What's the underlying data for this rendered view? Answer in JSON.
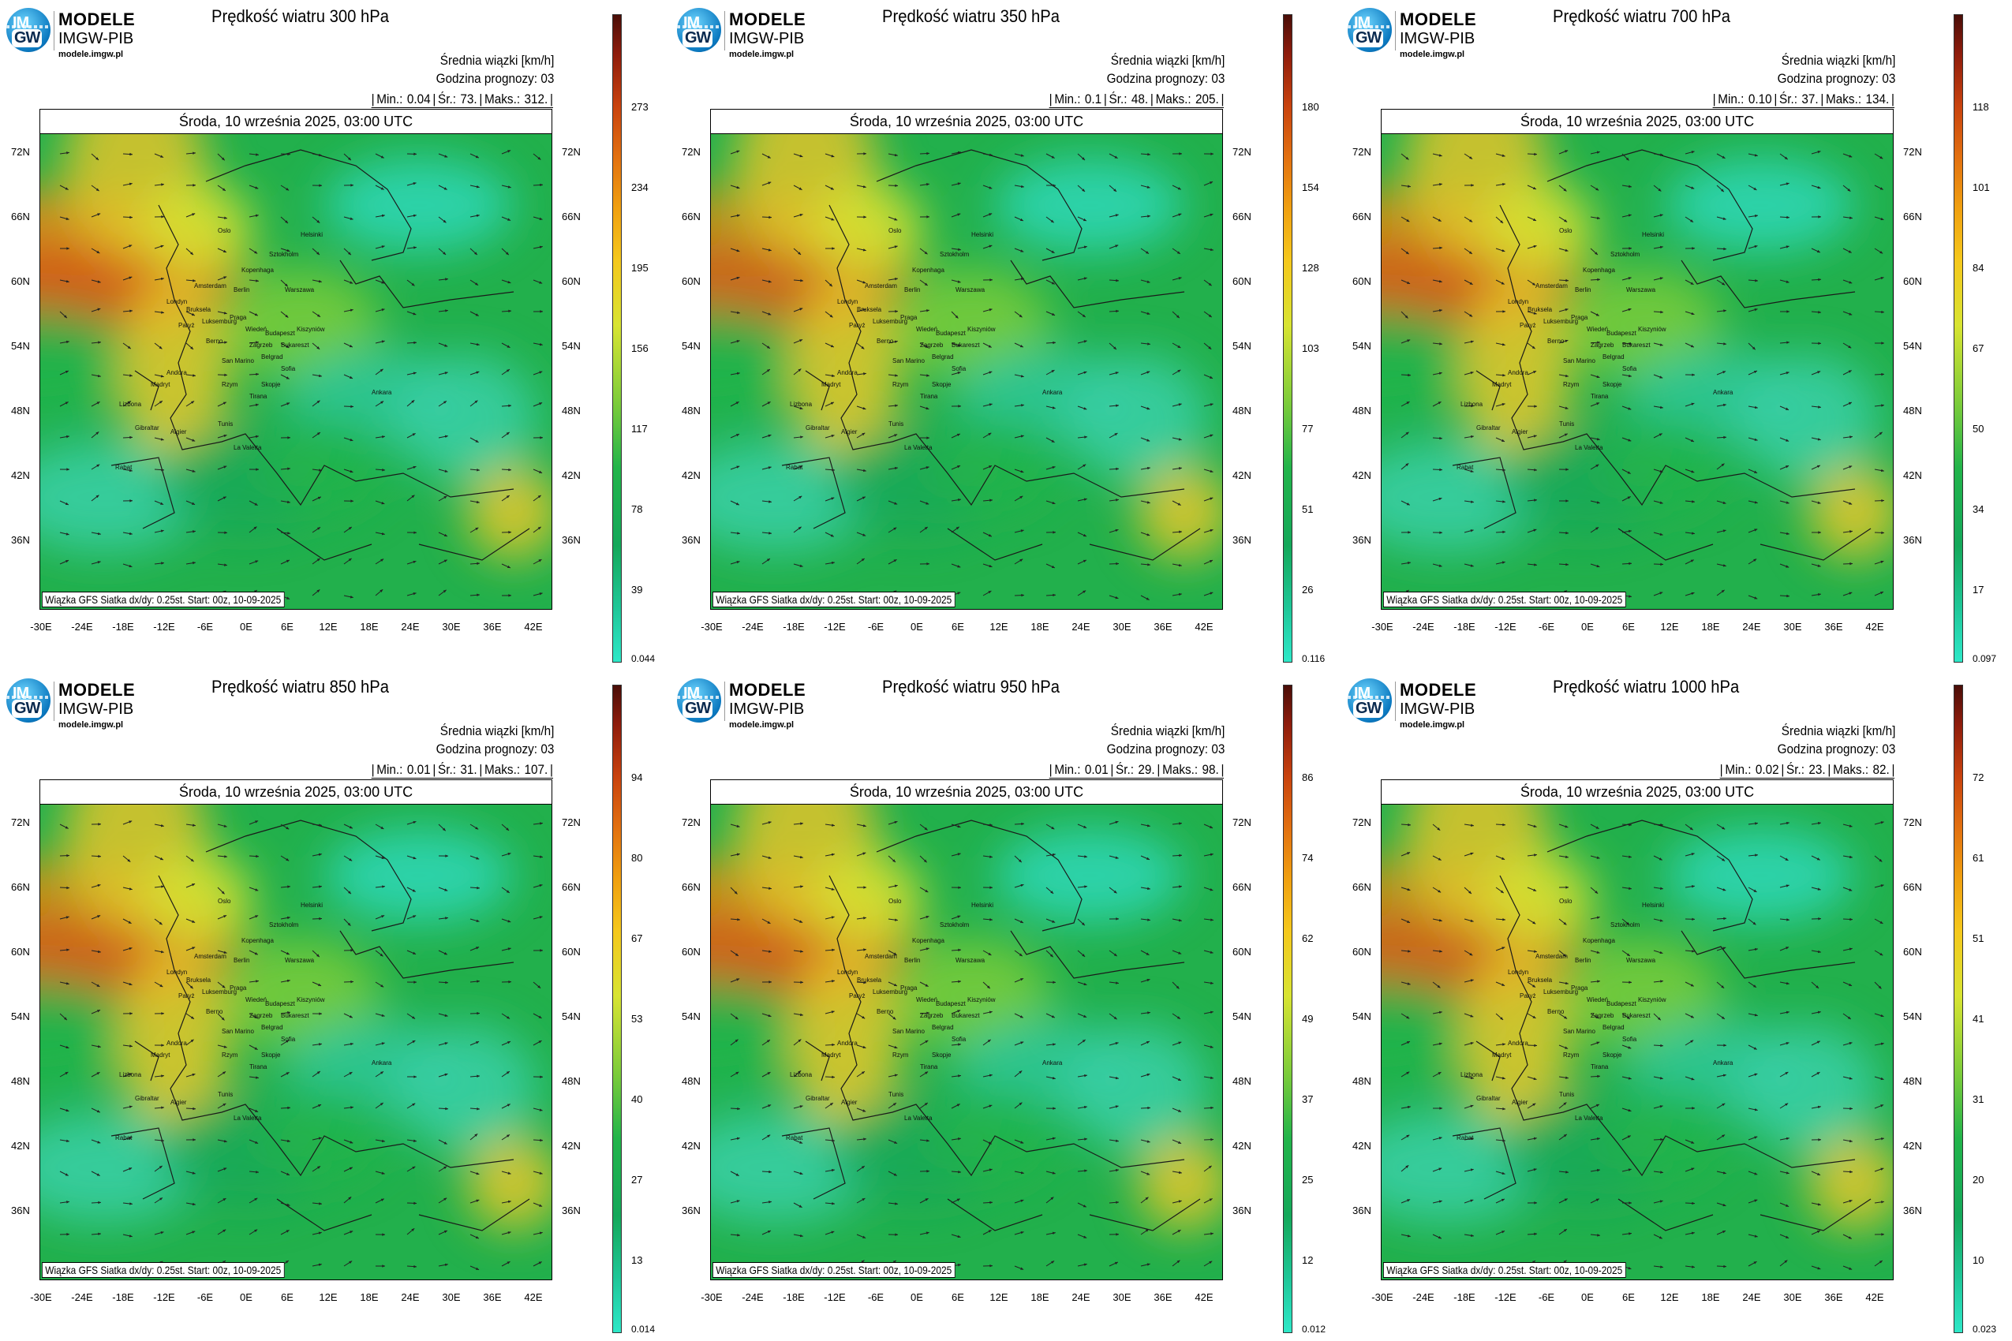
{
  "logo": {
    "line1": "MODELE",
    "line2": "IMGW-PIB",
    "line3": "modele.imgw.pl",
    "badge_top": "IM",
    "badge_bottom": "GW"
  },
  "common": {
    "mean_label": "Średnia wiązki [km/h]",
    "forecast_label": "Godzina prognozy: 03",
    "date": "Środa, 10 września 2025, 03:00 UTC",
    "source": "Wiązka GFS Siatka dx/dy: 0.25st. Start: 00z, 10-09-2025",
    "lat_labels": [
      "72N",
      "66N",
      "60N",
      "54N",
      "48N",
      "42N",
      "36N"
    ],
    "lon_labels": [
      "-30E",
      "-24E",
      "-18E",
      "-12E",
      "-6E",
      "0E",
      "6E",
      "12E",
      "18E",
      "24E",
      "30E",
      "36E",
      "42E"
    ]
  },
  "panels": [
    {
      "title": "Prędkość wiatru 300 hPa",
      "min": "0.04",
      "avg": "73.",
      "max": "312.",
      "ticks": [
        "273",
        "234",
        "195",
        "156",
        "117",
        "78",
        "39"
      ],
      "cmin": "0.044",
      "jet": 0.85
    },
    {
      "title": "Prędkość wiatru 350 hPa",
      "min": "0.1",
      "avg": "48.",
      "max": "205.",
      "ticks": [
        "180",
        "154",
        "128",
        "103",
        "77",
        "51",
        "26"
      ],
      "cmin": "0.116",
      "jet": 0.75
    },
    {
      "title": "Prędkość wiatru 700 hPa",
      "min": "0.10",
      "avg": "37.",
      "max": "134.",
      "ticks": [
        "118",
        "101",
        "84",
        "67",
        "50",
        "34",
        "17"
      ],
      "cmin": "0.097",
      "jet": 0.8
    },
    {
      "title": "Prędkość wiatru 850 hPa",
      "min": "0.01",
      "avg": "31.",
      "max": "107.",
      "ticks": [
        "94",
        "80",
        "67",
        "53",
        "40",
        "27",
        "13"
      ],
      "cmin": "0.014",
      "jet": 0.78
    },
    {
      "title": "Prędkość wiatru 950 hPa",
      "min": "0.01",
      "avg": "29.",
      "max": "98.",
      "ticks": [
        "86",
        "74",
        "62",
        "49",
        "37",
        "25",
        "12"
      ],
      "cmin": "0.012",
      "jet": 0.8
    },
    {
      "title": "Prędkość wiatru 1000 hPa",
      "min": "0.02",
      "avg": "23.",
      "max": "82.",
      "ticks": [
        "72",
        "61",
        "51",
        "41",
        "31",
        "20",
        "10"
      ],
      "cmin": "0.023",
      "jet": 0.75
    }
  ],
  "stat_labels": {
    "min": "Min.:",
    "avg": "Śr.:",
    "max": "Maks.:"
  },
  "cities": [
    "Oslo",
    "Helsinki",
    "Sztokholm",
    "Kopenhaga",
    "Amsterdam",
    "Berlin",
    "Warszawa",
    "Londyn",
    "Bruksela",
    "Luksemburg",
    "Paryż",
    "Praga",
    "Wiedeń",
    "Budapeszt",
    "Berno",
    "Zagrzeb",
    "Kiszyniów",
    "Bukareszt",
    "Belgrad",
    "Sofia",
    "San Marino",
    "Andora",
    "Madryt",
    "Lizbona",
    "Rzym",
    "Skopje",
    "Ankara",
    "Tirana",
    "Gibraltar",
    "Algier",
    "Tunis",
    "La Valetta",
    "Rabat"
  ],
  "colors": {
    "low": "#2ee8c8",
    "green": "#14a85a",
    "yellow": "#f5c81c",
    "orange": "#e27010",
    "red": "#8e1c0c"
  }
}
